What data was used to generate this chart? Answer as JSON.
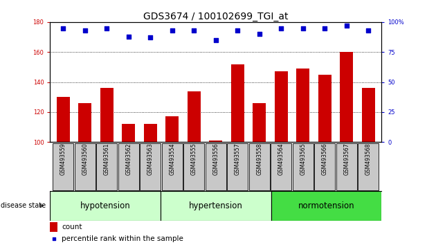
{
  "title": "GDS3674 / 100102699_TGI_at",
  "samples": [
    "GSM493559",
    "GSM493560",
    "GSM493561",
    "GSM493562",
    "GSM493563",
    "GSM493554",
    "GSM493555",
    "GSM493556",
    "GSM493557",
    "GSM493558",
    "GSM493564",
    "GSM493565",
    "GSM493566",
    "GSM493567",
    "GSM493568"
  ],
  "counts": [
    130,
    126,
    136,
    112,
    112,
    117,
    134,
    101,
    152,
    126,
    147,
    149,
    145,
    160,
    136
  ],
  "percentiles": [
    95,
    93,
    95,
    88,
    87,
    93,
    93,
    85,
    93,
    90,
    95,
    95,
    95,
    97,
    93
  ],
  "group_info": [
    {
      "label": "hypotension",
      "start": 0,
      "end": 5,
      "color": "#ccffcc"
    },
    {
      "label": "hypertension",
      "start": 5,
      "end": 10,
      "color": "#ccffcc"
    },
    {
      "label": "normotension",
      "start": 10,
      "end": 15,
      "color": "#44dd44"
    }
  ],
  "ylim_left": [
    100,
    180
  ],
  "ylim_right": [
    0,
    100
  ],
  "yticks_left": [
    100,
    120,
    140,
    160,
    180
  ],
  "yticks_right": [
    0,
    25,
    50,
    75,
    100
  ],
  "bar_color": "#CC0000",
  "dot_color": "#0000CC",
  "bar_width": 0.6,
  "background_plot": "#ffffff",
  "background_tick": "#c8c8c8",
  "title_fontsize": 10,
  "tick_fontsize": 6,
  "sample_fontsize": 5.5,
  "legend_fontsize": 7.5,
  "group_fontsize": 8.5,
  "disease_fontsize": 7
}
